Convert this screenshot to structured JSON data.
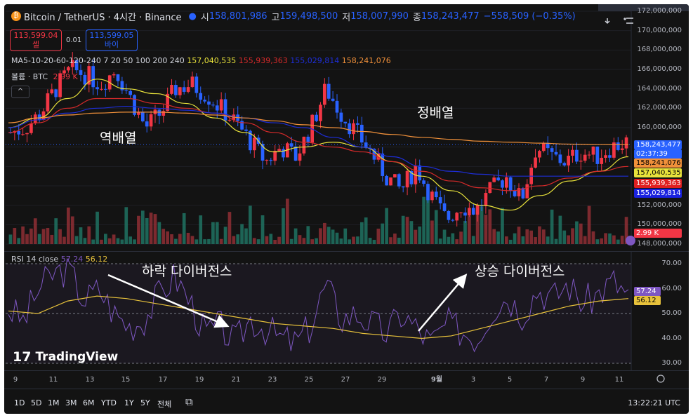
{
  "header": {
    "title": "Bitcoin / TetherUS · 4시간 · Binance",
    "coin_glyph": "₿",
    "open_label": "시",
    "open": "158,801,986",
    "high_label": "고",
    "high": "159,498,500",
    "low_label": "저",
    "low": "158,007,990",
    "close_label": "종",
    "close": "158,243,477",
    "change": "−558,509 (−0.35%)"
  },
  "trade": {
    "sell_price": "113,599.04",
    "sell_label": "셀",
    "spread": "0.01",
    "buy_price": "113,599.05",
    "buy_label": "바이"
  },
  "indicators": {
    "ma_name": "MA5-10-20-60-120-240",
    "ma_periods": "7 20 50 100 200 240",
    "ma_values": [
      {
        "v": "157,040,535",
        "color": "#e8e23b"
      },
      {
        "v": "155,939,363",
        "color": "#d42a2a"
      },
      {
        "v": "155,029,814",
        "color": "#1e2ed8"
      },
      {
        "v": "158,241,076",
        "color": "#f0903a"
      }
    ],
    "volume_label": "볼륨 · BTC",
    "volume_value": "2.99 K",
    "collapse_glyph": "^"
  },
  "price_axis": {
    "ticks": [
      "172,000,000",
      "170,000,000",
      "168,000,000",
      "166,000,000",
      "164,000,000",
      "162,000,000",
      "160,000,000",
      "152,000,000",
      "150,000,000",
      "148,000,000"
    ]
  },
  "price_tags": [
    {
      "v": "158,243,477",
      "bg": "#2962ff",
      "fg": "#ffffff"
    },
    {
      "v": "02:37:39",
      "bg": "#2962ff",
      "fg": "#ffffff"
    },
    {
      "v": "158,241,076",
      "bg": "#f0903a",
      "fg": "#000000"
    },
    {
      "v": "157,040,535",
      "bg": "#e8e23b",
      "fg": "#000000"
    },
    {
      "v": "155,939,363",
      "bg": "#e02020",
      "fg": "#ffffff"
    },
    {
      "v": "155,029,814",
      "bg": "#1a22e0",
      "fg": "#ffffff"
    },
    {
      "v": "2.99 K",
      "bg": "#f23645",
      "fg": "#ffffff"
    }
  ],
  "rsi": {
    "label": "RSI 14 close",
    "value": "57.24",
    "ma_value": "56.12",
    "ticks": [
      "70.00",
      "60.00",
      "50.00",
      "40.00",
      "30.00"
    ],
    "value_color": "#7e57c2",
    "ma_color": "#e8c23b"
  },
  "annotations": {
    "inverse": "역배열",
    "regular": "정배열",
    "bear_div": "하락 다이버전스",
    "bull_div": "상승 다이버전스"
  },
  "time_axis": {
    "labels": [
      "9",
      "11",
      "13",
      "15",
      "17",
      "19",
      "21",
      "23",
      "25",
      "27",
      "29",
      "9월",
      "3",
      "5",
      "7",
      "9",
      "11"
    ]
  },
  "timeframes": [
    "1D",
    "5D",
    "1M",
    "3M",
    "6M",
    "YTD",
    "1Y",
    "5Y",
    "전체"
  ],
  "clock": "13:22:21 UTC",
  "watermark": "TradingView",
  "colors": {
    "up": "#f23645",
    "down": "#2962ff",
    "up_vol": "#8a2e33",
    "down_vol": "#1f6e5e"
  },
  "chart_data": {
    "type": "candlestick",
    "title": "Bitcoin / TetherUS · 4시간 · Binance",
    "ylim": [
      148000000,
      172000000
    ],
    "current_price": 158243477,
    "x_labels": [
      "9",
      "11",
      "13",
      "15",
      "17",
      "19",
      "21",
      "23",
      "25",
      "27",
      "29",
      "9월",
      "3",
      "5",
      "7",
      "9",
      "11"
    ],
    "close_path": [
      159.5,
      160.0,
      161.5,
      164.0,
      166.0,
      165.5,
      164.5,
      166.0,
      163.0,
      160.0,
      161.5,
      164.0,
      164.5,
      163.5,
      162.0,
      160.5,
      158.5,
      156.5,
      158.0,
      157.0,
      160.0,
      164.0,
      161.5,
      159.5,
      157.5,
      155.0,
      153.5,
      156.0,
      153.0,
      150.5,
      152.0,
      151.5,
      153.5,
      155.0,
      152.5,
      158.0,
      157.0,
      156.5,
      157.5,
      157.0,
      158.0,
      158.5
    ],
    "ma_series": [
      {
        "name": "MA7",
        "color": "#e8e23b",
        "values": [
          160.0,
          161.0,
          163.0,
          165.0,
          164.0,
          163.5,
          162.5,
          161.0,
          159.5,
          157.5,
          158.0,
          158.5,
          158.0,
          156.5,
          155.0,
          153.5,
          152.0,
          151.5,
          153.0,
          154.5,
          155.5,
          157.0
        ]
      },
      {
        "name": "MA20",
        "color": "#d42a2a",
        "values": [
          159.5,
          160.5,
          162.0,
          163.0,
          163.0,
          162.5,
          162.0,
          161.5,
          160.5,
          159.5,
          158.5,
          158.0,
          157.5,
          156.5,
          155.5,
          154.5,
          153.8,
          153.5,
          154.0,
          154.8,
          155.5,
          156.0
        ]
      },
      {
        "name": "MA50",
        "color": "#1e2ed8",
        "values": [
          160.0,
          160.8,
          161.5,
          162.0,
          162.2,
          162.0,
          161.8,
          161.5,
          161.0,
          160.5,
          160.0,
          159.0,
          158.0,
          157.0,
          156.0,
          155.5,
          155.2,
          155.0,
          155.0,
          155.0,
          155.0,
          155.0
        ]
      },
      {
        "name": "MA240",
        "color": "#f0903a",
        "values": [
          160.5,
          161.0,
          161.3,
          161.5,
          161.6,
          161.6,
          161.5,
          161.3,
          161.0,
          160.7,
          160.3,
          160.0,
          159.6,
          159.3,
          159.0,
          158.8,
          158.6,
          158.5,
          158.4,
          158.3,
          158.25,
          158.24
        ]
      }
    ],
    "rsi": {
      "ylim": [
        30,
        70
      ],
      "value": 57.24,
      "ma": 56.12,
      "values": [
        52,
        47,
        60,
        66,
        68,
        55,
        60,
        50,
        45,
        48,
        58,
        65,
        55,
        42,
        45,
        38,
        48,
        44,
        40,
        38,
        45,
        62,
        48,
        50,
        46,
        42,
        50,
        44,
        38,
        46,
        43,
        40,
        52,
        57,
        50,
        60,
        56,
        62,
        54,
        58,
        63,
        57
      ],
      "ma_values": [
        51,
        50,
        55,
        57,
        56,
        54,
        52,
        50,
        48,
        46,
        45,
        44,
        42,
        41,
        40,
        41,
        44,
        47,
        50,
        53,
        55,
        56
      ]
    },
    "legend": "top-left"
  }
}
